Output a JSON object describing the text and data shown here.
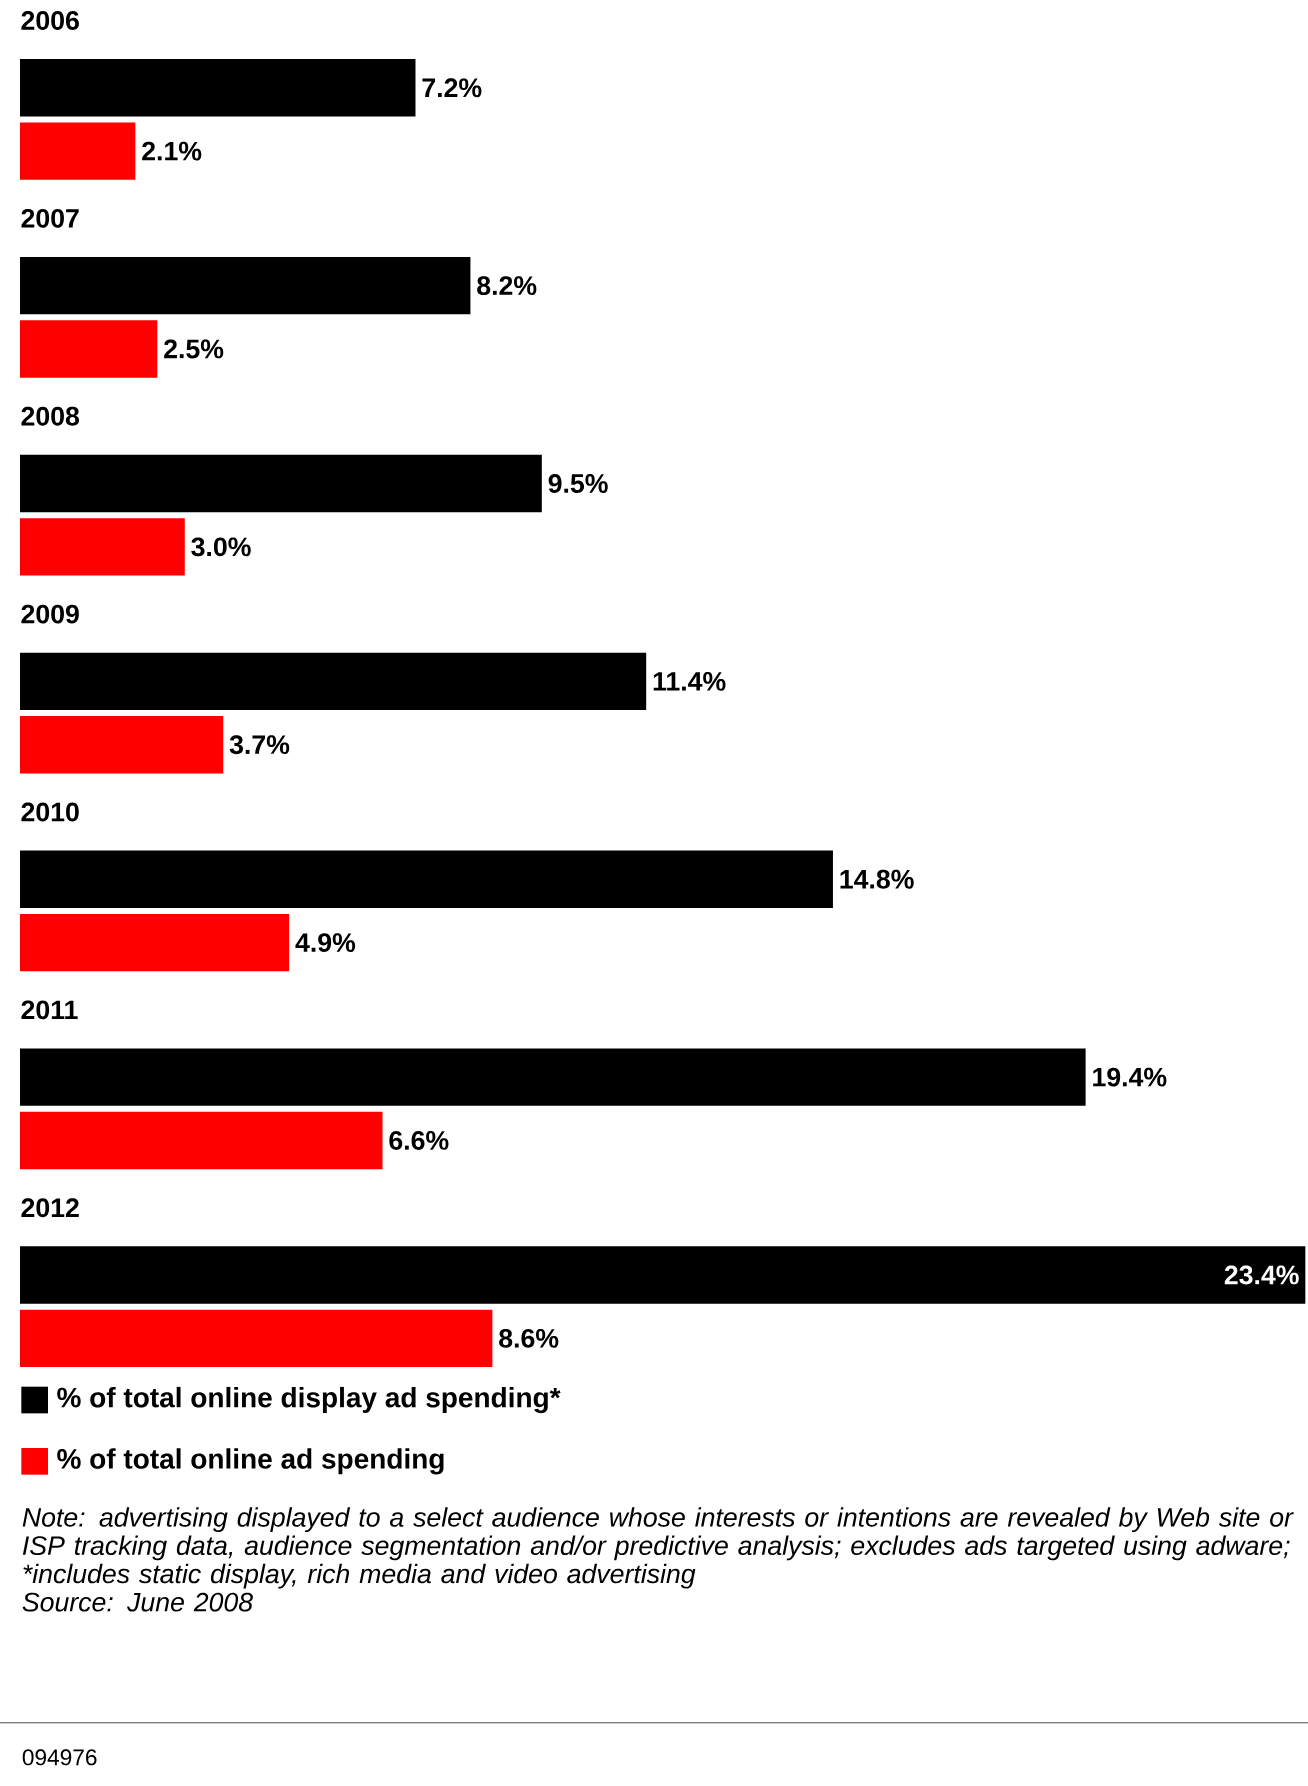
{
  "chart_data": {
    "type": "bar",
    "orientation": "horizontal",
    "legend": "bottom",
    "categories": [
      "2006",
      "2007",
      "2008",
      "2009",
      "2010",
      "2011",
      "2012"
    ],
    "series": [
      {
        "name": "% of total online display ad spending*",
        "color": "#000000",
        "values": [
          7.2,
          8.2,
          9.5,
          11.4,
          14.8,
          19.4,
          23.4
        ],
        "value_labels": [
          "7.2%",
          "8.2%",
          "9.5%",
          "11.4%",
          "14.8%",
          "19.4%",
          "23.4%"
        ]
      },
      {
        "name": "% of total online ad spending",
        "color": "#ff0000",
        "values": [
          2.1,
          2.5,
          3.0,
          3.7,
          4.9,
          6.6,
          8.6
        ],
        "value_labels": [
          "2.1%",
          "2.5%",
          "3.0%",
          "3.7%",
          "4.9%",
          "6.6%",
          "8.6%"
        ]
      }
    ],
    "annotations": [
      "Note: advertising displayed to a select audience whose interests or intentions are revealed by Web site or ISP tracking data, audience segmentation and/or predictive analysis; excludes ads targeted using adware; *includes static display, rich media and video advertising",
      "Source: June 2008",
      "094976"
    ]
  }
}
